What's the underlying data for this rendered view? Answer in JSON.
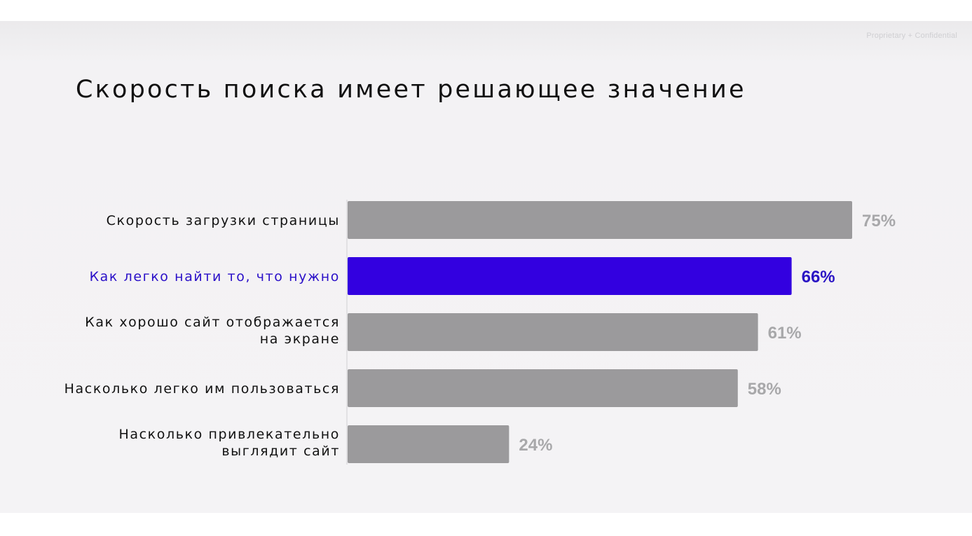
{
  "header": {
    "confidential": "Proprietary + Confidential"
  },
  "chart_data": {
    "type": "bar",
    "orientation": "horizontal",
    "title": "Скорость поиска имеет решающее значение",
    "categories": [
      [
        "Скорость загрузки страницы"
      ],
      [
        "Как легко найти то, что нужно"
      ],
      [
        "Как хорошо сайт отображается",
        "на экране"
      ],
      [
        "Насколько легко им пользоваться"
      ],
      [
        "Насколько привлекательно",
        "выглядит сайт"
      ]
    ],
    "values": [
      75,
      66,
      61,
      58,
      24
    ],
    "value_labels": [
      "75%",
      "66%",
      "61%",
      "58%",
      "24%"
    ],
    "highlight_index": 1,
    "colors": {
      "bar": "#9b9a9c",
      "highlight": "#3300e0",
      "value_text": "#a8a8aa",
      "label_text": "#111111",
      "highlight_label_text": "#2a0fc8",
      "highlight_value_text": "#2a14c4"
    },
    "xlim": [
      0,
      100
    ],
    "grid": false,
    "legend": "none"
  }
}
